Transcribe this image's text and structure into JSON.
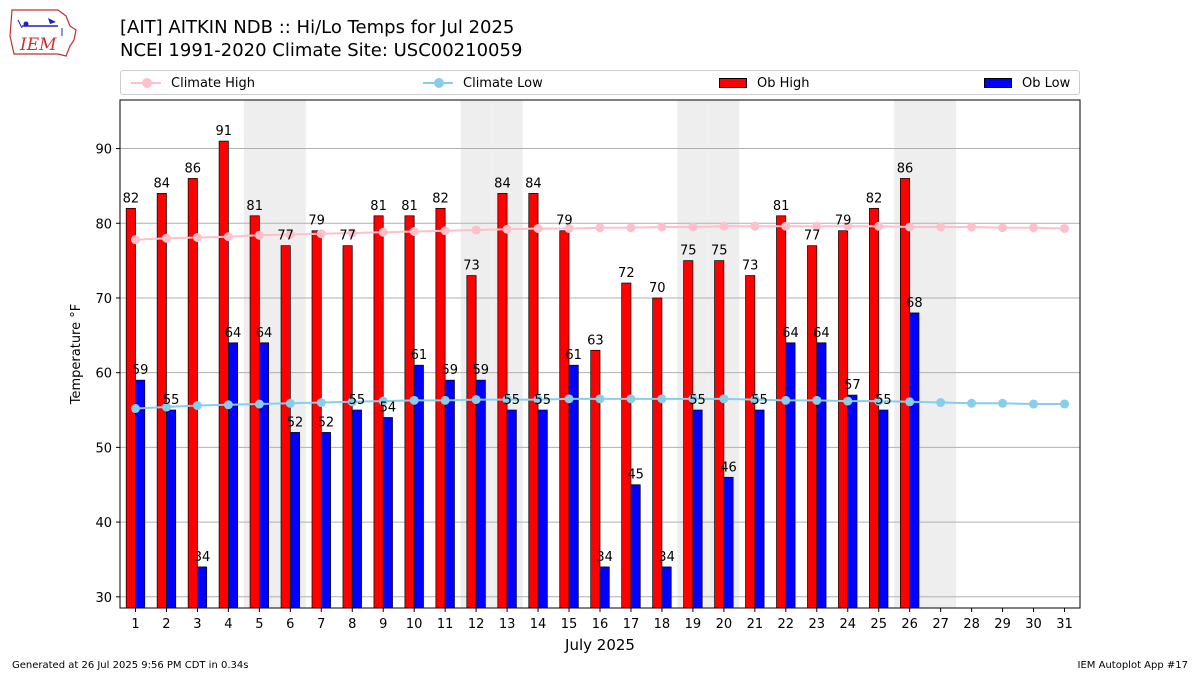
{
  "header": {
    "title_line1": "[AIT] AITKIN NDB :: Hi/Lo Temps for Jul 2025",
    "title_line2": "NCEI 1991-2020 Climate Site: USC00210059",
    "logo_text": "IEM"
  },
  "legend": {
    "climate_high": "Climate High",
    "climate_low": "Climate Low",
    "ob_high": "Ob High",
    "ob_low": "Ob Low"
  },
  "colors": {
    "climate_high": "#ffc0cb",
    "climate_low": "#87ceeb",
    "ob_high": "#ff0000",
    "ob_low": "#0000ff",
    "weekend_shade": "#eeeeee",
    "grid": "#b0b0b0"
  },
  "footer": {
    "left": "Generated at 26 Jul 2025 9:56 PM CDT in 0.34s",
    "right": "IEM Autoplot App #17"
  },
  "chart_data": {
    "type": "bar",
    "xlabel": "July 2025",
    "ylabel": "Temperature °F",
    "ylim": [
      28.5,
      96.5
    ],
    "yticks": [
      30,
      40,
      50,
      60,
      70,
      80,
      90
    ],
    "grid": true,
    "legend_position": "top",
    "categories": [
      "1",
      "2",
      "3",
      "4",
      "5",
      "6",
      "7",
      "8",
      "9",
      "10",
      "11",
      "12",
      "13",
      "14",
      "15",
      "16",
      "17",
      "18",
      "19",
      "20",
      "21",
      "22",
      "23",
      "24",
      "25",
      "26",
      "27",
      "28",
      "29",
      "30",
      "31"
    ],
    "shaded_days": [
      5,
      6,
      12,
      13,
      19,
      20,
      26,
      27
    ],
    "series": [
      {
        "name": "Ob High",
        "kind": "bar",
        "values": [
          82,
          84,
          86,
          91,
          81,
          77,
          79,
          77,
          81,
          81,
          82,
          73,
          84,
          84,
          79,
          63,
          72,
          70,
          75,
          75,
          73,
          81,
          77,
          79,
          82,
          86,
          null,
          null,
          null,
          null,
          null
        ]
      },
      {
        "name": "Ob Low",
        "kind": "bar",
        "values": [
          59,
          55,
          34,
          64,
          64,
          52,
          52,
          55,
          54,
          61,
          59,
          59,
          55,
          55,
          61,
          34,
          45,
          34,
          55,
          46,
          55,
          64,
          64,
          57,
          55,
          68,
          null,
          null,
          null,
          null,
          null
        ]
      },
      {
        "name": "Climate High",
        "kind": "line",
        "values": [
          77.8,
          78.0,
          78.1,
          78.2,
          78.4,
          78.5,
          78.6,
          78.7,
          78.8,
          78.9,
          79.0,
          79.1,
          79.2,
          79.3,
          79.3,
          79.4,
          79.4,
          79.5,
          79.5,
          79.6,
          79.6,
          79.6,
          79.6,
          79.6,
          79.6,
          79.5,
          79.5,
          79.5,
          79.4,
          79.4,
          79.3
        ]
      },
      {
        "name": "Climate Low",
        "kind": "line",
        "values": [
          55.2,
          55.4,
          55.6,
          55.7,
          55.8,
          55.9,
          56.0,
          56.1,
          56.2,
          56.3,
          56.3,
          56.4,
          56.4,
          56.4,
          56.5,
          56.5,
          56.5,
          56.5,
          56.5,
          56.5,
          56.4,
          56.3,
          56.3,
          56.2,
          56.2,
          56.1,
          56.0,
          55.9,
          55.9,
          55.8,
          55.8
        ]
      }
    ]
  }
}
